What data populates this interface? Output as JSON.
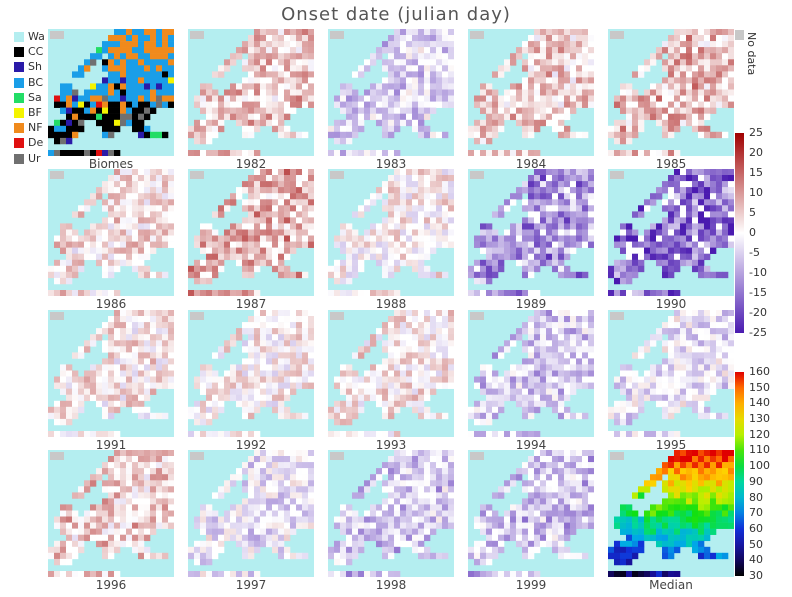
{
  "title": "Onset date (julian day)",
  "legend": [
    {
      "code": "Wa",
      "color": "#b4eef0"
    },
    {
      "code": "CC",
      "color": "#000000"
    },
    {
      "code": "Sh",
      "color": "#2a1aa8"
    },
    {
      "code": "BC",
      "color": "#1a9ee8"
    },
    {
      "code": "Sa",
      "color": "#22dd66"
    },
    {
      "code": "BF",
      "color": "#f4f400"
    },
    {
      "code": "NF",
      "color": "#f08a1c"
    },
    {
      "code": "De",
      "color": "#e01010"
    },
    {
      "code": "Ur",
      "color": "#707070"
    }
  ],
  "nodata_label": "No data",
  "anomaly_scale": {
    "ticks": [
      "25",
      "20",
      "15",
      "10",
      "5",
      "0",
      "-5",
      "-10",
      "-15",
      "-20",
      "-25"
    ],
    "low_color": "#4a1ab0",
    "mid_color": "#ffffff",
    "high_color": "#a00000"
  },
  "median_scale": {
    "ticks": [
      "160",
      "150",
      "140",
      "130",
      "120",
      "110",
      "100",
      "90",
      "80",
      "70",
      "60",
      "50",
      "40",
      "30"
    ]
  },
  "panels": [
    {
      "label": "Biomes",
      "kind": "biomes"
    },
    {
      "label": "1982",
      "anomaly": 6
    },
    {
      "label": "1983",
      "anomaly": -5
    },
    {
      "label": "1984",
      "anomaly": 5
    },
    {
      "label": "1985",
      "anomaly": 7
    },
    {
      "label": "1986",
      "anomaly": 3
    },
    {
      "label": "1987",
      "anomaly": 8
    },
    {
      "label": "1988",
      "anomaly": 1
    },
    {
      "label": "1989",
      "anomaly": -12
    },
    {
      "label": "1990",
      "anomaly": -16
    },
    {
      "label": "1991",
      "anomaly": 2
    },
    {
      "label": "1992",
      "anomaly": 1
    },
    {
      "label": "1993",
      "anomaly": 2
    },
    {
      "label": "1994",
      "anomaly": -6
    },
    {
      "label": "1995",
      "anomaly": -3
    },
    {
      "label": "1996",
      "anomaly": 5
    },
    {
      "label": "1997",
      "anomaly": -3
    },
    {
      "label": "1998",
      "anomaly": -6
    },
    {
      "label": "1999",
      "anomaly": -7
    },
    {
      "label": "Median",
      "kind": "median"
    }
  ]
}
